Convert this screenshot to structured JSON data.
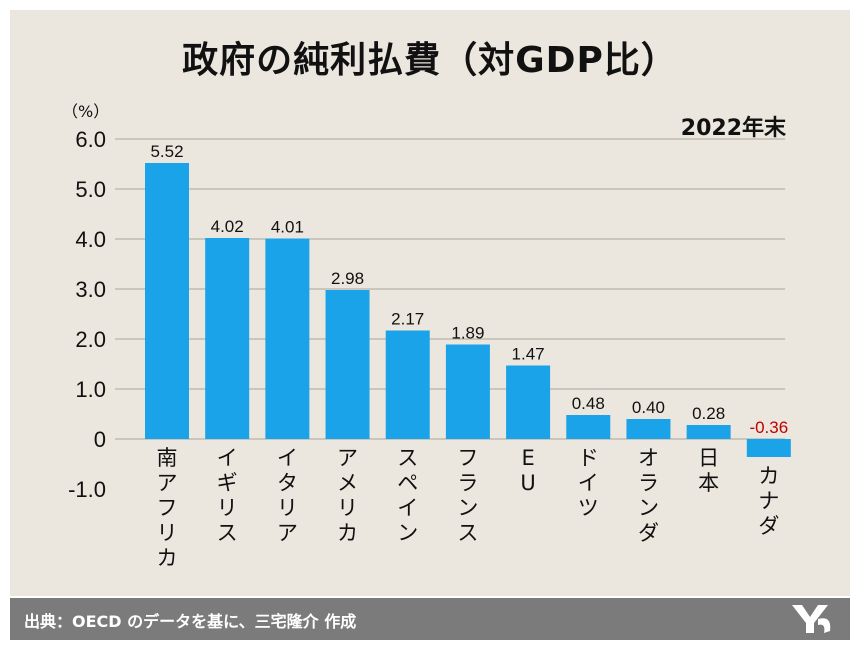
{
  "title": "政府の純利払費（対GDP比）",
  "unit": "（%）",
  "date_label": "2022年末",
  "source": "出典：OECD のデータを基に、三宅隆介 作成",
  "colors": {
    "bar": "#1aa3e8",
    "negative_label": "#c00000",
    "panel": "#ebe7de",
    "footer": "#7b7b7b"
  },
  "chart_data": {
    "type": "bar",
    "categories": [
      "南アフリカ",
      "イギリス",
      "イタリア",
      "アメリカ",
      "スペイン",
      "フランス",
      "EU",
      "ドイツ",
      "オランダ",
      "日本",
      "カナダ"
    ],
    "values": [
      5.52,
      4.02,
      4.01,
      2.98,
      2.17,
      1.89,
      1.47,
      0.48,
      0.4,
      0.28,
      -0.36
    ],
    "value_labels": [
      "5.52",
      "4.02",
      "4.01",
      "2.98",
      "2.17",
      "1.89",
      "1.47",
      "0.48",
      "0.40",
      "0.28",
      "-0.36"
    ],
    "yticks": [
      "6.0",
      "5.0",
      "4.0",
      "3.0",
      "2.0",
      "1.0",
      "0",
      "-1.0"
    ],
    "ylim": [
      -1.0,
      6.0
    ],
    "grid": true,
    "legend": "none"
  }
}
